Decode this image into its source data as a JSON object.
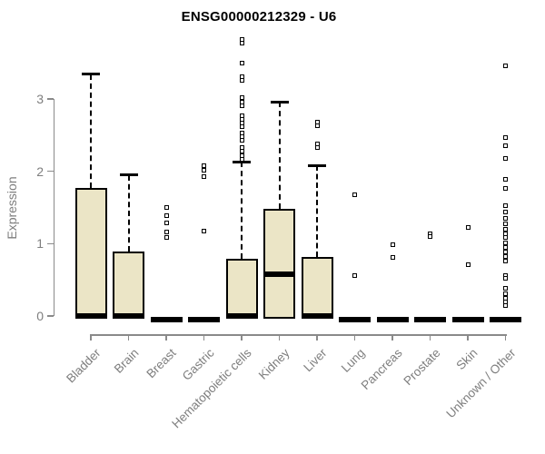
{
  "title": "ENSG00000212329 - U6",
  "chart_data": {
    "type": "boxplot",
    "title": "ENSG00000212329 - U6",
    "ylabel": "Expression",
    "xlabel": "",
    "yticks": [
      0,
      1,
      2,
      3
    ],
    "ylim": [
      0,
      3.95
    ],
    "grid": false,
    "legend": "none",
    "categories": [
      "Bladder",
      "Brain",
      "Breast",
      "Gastric",
      "Hematopoietic cells",
      "Kidney",
      "Liver",
      "Lung",
      "Pancreas",
      "Prostate",
      "Skin",
      "Unknown / Other"
    ],
    "boxes": [
      {
        "category": "Bladder",
        "q1": 0,
        "median": 0,
        "q3": 1.77,
        "whisker_low": 0,
        "whisker_high": 3.34,
        "outliers": []
      },
      {
        "category": "Brain",
        "q1": 0,
        "median": 0,
        "q3": 0.89,
        "whisker_low": 0,
        "whisker_high": 1.95,
        "outliers": []
      },
      {
        "category": "Breast",
        "q1": 0,
        "median": 0,
        "q3": 0,
        "whisker_low": 0,
        "whisker_high": 0,
        "outliers": [
          1.5,
          1.39,
          1.29,
          1.16,
          1.08
        ]
      },
      {
        "category": "Gastric",
        "q1": 0,
        "median": 0,
        "q3": 0,
        "whisker_low": 0,
        "whisker_high": 0,
        "outliers": [
          2.08,
          2.02,
          1.92,
          1.17
        ]
      },
      {
        "category": "Hematopoietic cells",
        "q1": 0,
        "median": 0,
        "q3": 0.79,
        "whisker_low": 0,
        "whisker_high": 2.13,
        "outliers": [
          3.82,
          3.77,
          3.5,
          3.31,
          3.25,
          3.02,
          2.96,
          2.9,
          2.77,
          2.72,
          2.66,
          2.61,
          2.53,
          2.48,
          2.43,
          2.33,
          2.28,
          2.22,
          2.16
        ]
      },
      {
        "category": "Kidney",
        "q1": 0,
        "median": 0.58,
        "q3": 1.48,
        "whisker_low": 0,
        "whisker_high": 2.96,
        "outliers": []
      },
      {
        "category": "Liver",
        "q1": 0,
        "median": 0,
        "q3": 0.81,
        "whisker_low": 0,
        "whisker_high": 2.08,
        "outliers": [
          2.68,
          2.63,
          2.38,
          2.33
        ]
      },
      {
        "category": "Lung",
        "q1": 0,
        "median": 0,
        "q3": 0,
        "whisker_low": 0,
        "whisker_high": 0,
        "outliers": [
          1.68,
          0.56
        ]
      },
      {
        "category": "Pancreas",
        "q1": 0,
        "median": 0,
        "q3": 0,
        "whisker_low": 0,
        "whisker_high": 0,
        "outliers": [
          0.99,
          0.81
        ]
      },
      {
        "category": "Prostate",
        "q1": 0,
        "median": 0,
        "q3": 0,
        "whisker_low": 0,
        "whisker_high": 0,
        "outliers": [
          1.13,
          1.1
        ]
      },
      {
        "category": "Skin",
        "q1": 0,
        "median": 0,
        "q3": 0,
        "whisker_low": 0,
        "whisker_high": 0,
        "outliers": [
          1.22,
          0.71
        ]
      },
      {
        "category": "Unknown / Other",
        "q1": 0,
        "median": 0,
        "q3": 0,
        "whisker_low": 0,
        "whisker_high": 0,
        "outliers": [
          3.46,
          2.46,
          2.35,
          2.18,
          1.89,
          1.76,
          1.53,
          1.44,
          1.35,
          1.27,
          1.2,
          1.14,
          1.08,
          1.01,
          0.95,
          0.89,
          0.82,
          0.76,
          0.56,
          0.52,
          0.38,
          0.31,
          0.25,
          0.19,
          0.14
        ]
      }
    ],
    "colors": {
      "box_fill": "#ebe5c6",
      "box_border": "#000000",
      "median": "#000000",
      "outlier": "#000000",
      "axis": "#8a8a8a",
      "tick_text": "#7e7e7e",
      "title_text": "#000000",
      "background": "#ffffff"
    }
  }
}
